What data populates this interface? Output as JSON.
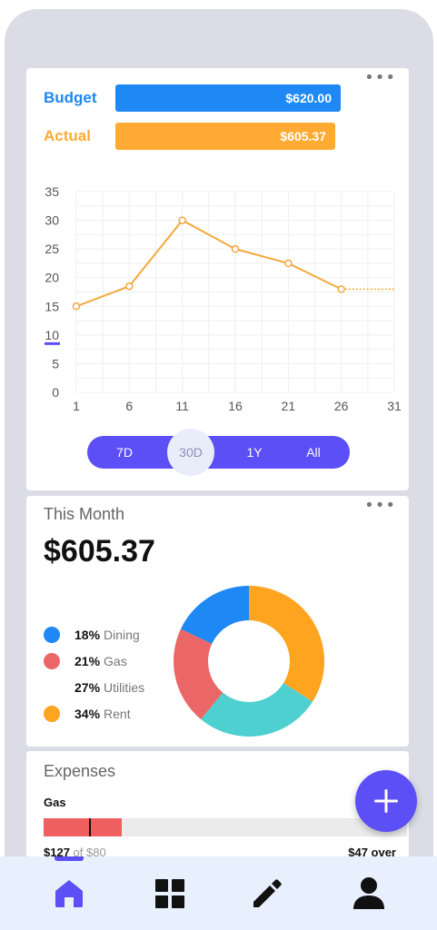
{
  "budget_card": {
    "budget_label": "Budget",
    "budget_value": "$620.00",
    "actual_label": "Actual",
    "actual_value": "$605.37",
    "more_icon": "more-horizontal-icon",
    "colors": {
      "budget": "#1e88f5",
      "actual": "#ffaa33"
    },
    "ranges": [
      "7D",
      "30D",
      "1Y",
      "All"
    ],
    "selected_range": "30D"
  },
  "chart_data": {
    "type": "line",
    "x": [
      1,
      6,
      11,
      16,
      21,
      26
    ],
    "values": [
      15,
      18.5,
      30,
      25,
      22.5,
      18
    ],
    "projection": {
      "x": [
        26,
        31
      ],
      "values": [
        18,
        18
      ]
    },
    "xticks": [
      "1",
      "6",
      "11",
      "16",
      "21",
      "26",
      "31"
    ],
    "yticks": [
      "0",
      "5",
      "10",
      "15",
      "20",
      "25",
      "30",
      "35"
    ],
    "xlim": [
      1,
      31
    ],
    "ylim": [
      0,
      35
    ],
    "grid": true,
    "line_color": "#f3a93e",
    "ymarker_value": 10,
    "ymarker_color": "#5b4ff5"
  },
  "month_card": {
    "title": "This Month",
    "total": "$605.37",
    "more_icon": "more-horizontal-icon",
    "legend": [
      {
        "pct": "18%",
        "name": "Dining",
        "color": "#1e88f5",
        "dot": true
      },
      {
        "pct": "21%",
        "name": "Gas",
        "color": "#eb6767",
        "dot": true
      },
      {
        "pct": "27%",
        "name": "Utilities",
        "color": "#4ecfd0",
        "dot": false
      },
      {
        "pct": "34%",
        "name": "Rent",
        "color": "#ffa41f",
        "dot": true
      }
    ],
    "donut": [
      {
        "name": "Dining",
        "share": 0.18,
        "color": "#1e88f5"
      },
      {
        "name": "Gas",
        "share": 0.21,
        "color": "#eb6767"
      },
      {
        "name": "Utilities",
        "share": 0.27,
        "color": "#4ecfd0"
      },
      {
        "name": "Rent",
        "share": 0.34,
        "color": "#ffa41f"
      }
    ]
  },
  "expenses_card": {
    "title": "Expenses",
    "category": "Gas",
    "spent": "$127",
    "of_text": "of $80",
    "over_text": "$47 over",
    "progress_fill_fraction": 0.215,
    "progress_marker_fraction": 0.125,
    "colors": {
      "fill": "#f05f5f",
      "track": "#ebebeb"
    }
  },
  "fab": {
    "icon": "plus-icon",
    "color": "#5b4ff5"
  },
  "nav": {
    "items": [
      {
        "icon": "home-icon",
        "active": true
      },
      {
        "icon": "dashboard-grid-icon",
        "active": false
      },
      {
        "icon": "edit-pencil-icon",
        "active": false
      },
      {
        "icon": "profile-person-icon",
        "active": false
      }
    ],
    "accent": "#5b4ff5"
  }
}
